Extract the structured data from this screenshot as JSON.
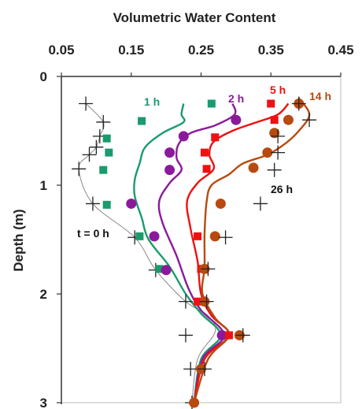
{
  "chart_data": {
    "type": "scatter",
    "title": "",
    "xlabel": "Volumetric Water Content",
    "ylabel": "Depth (m)",
    "xlim": [
      0.05,
      0.45
    ],
    "ylim": [
      0,
      3
    ],
    "y_inverted": true,
    "x_axis_position": "top",
    "x_ticks": [
      "0.05",
      "0.15",
      "0.25",
      "0.35",
      "0.45"
    ],
    "y_ticks": [
      "0",
      "1",
      "2",
      "3"
    ],
    "grid": false,
    "series": [
      {
        "name": "t = 0 h",
        "color": "#888888",
        "marker": "plus",
        "marker_color": "#222222",
        "points": [
          {
            "x": 0.085,
            "y": 0.25
          },
          {
            "x": 0.11,
            "y": 0.42
          },
          {
            "x": 0.105,
            "y": 0.55
          },
          {
            "x": 0.1,
            "y": 0.65
          },
          {
            "x": 0.09,
            "y": 0.72
          },
          {
            "x": 0.075,
            "y": 0.85
          },
          {
            "x": 0.095,
            "y": 1.17
          },
          {
            "x": 0.155,
            "y": 1.48
          },
          {
            "x": 0.185,
            "y": 1.78
          },
          {
            "x": 0.228,
            "y": 2.07
          },
          {
            "x": 0.228,
            "y": 2.38
          },
          {
            "x": 0.235,
            "y": 2.69
          },
          {
            "x": 0.237,
            "y": 3.0
          }
        ],
        "curve": [
          {
            "x": 0.085,
            "y": 0.25
          },
          {
            "x": 0.11,
            "y": 0.42
          },
          {
            "x": 0.105,
            "y": 0.55
          },
          {
            "x": 0.1,
            "y": 0.65
          },
          {
            "x": 0.09,
            "y": 0.72
          },
          {
            "x": 0.075,
            "y": 0.85
          },
          {
            "x": 0.095,
            "y": 1.17
          },
          {
            "x": 0.155,
            "y": 1.48
          },
          {
            "x": 0.185,
            "y": 1.78
          },
          {
            "x": 0.228,
            "y": 2.07
          },
          {
            "x": 0.26,
            "y": 2.2
          },
          {
            "x": 0.27,
            "y": 2.35
          },
          {
            "x": 0.245,
            "y": 2.6
          },
          {
            "x": 0.237,
            "y": 3.0
          }
        ]
      },
      {
        "name": "1 h",
        "color": "#1a9b6c",
        "marker": "square",
        "points": [
          {
            "x": 0.265,
            "y": 0.25
          },
          {
            "x": 0.165,
            "y": 0.41
          },
          {
            "x": 0.115,
            "y": 0.57
          },
          {
            "x": 0.118,
            "y": 0.7
          },
          {
            "x": 0.11,
            "y": 0.86
          },
          {
            "x": 0.115,
            "y": 1.18
          },
          {
            "x": 0.162,
            "y": 1.47
          },
          {
            "x": 0.19,
            "y": 1.77
          }
        ],
        "curve": [
          {
            "x": 0.225,
            "y": 0.25
          },
          {
            "x": 0.222,
            "y": 0.35
          },
          {
            "x": 0.225,
            "y": 0.42
          },
          {
            "x": 0.195,
            "y": 0.52
          },
          {
            "x": 0.17,
            "y": 0.65
          },
          {
            "x": 0.162,
            "y": 0.8
          },
          {
            "x": 0.155,
            "y": 0.95
          },
          {
            "x": 0.155,
            "y": 1.1
          },
          {
            "x": 0.165,
            "y": 1.3
          },
          {
            "x": 0.175,
            "y": 1.5
          },
          {
            "x": 0.205,
            "y": 1.75
          },
          {
            "x": 0.228,
            "y": 2.0
          },
          {
            "x": 0.25,
            "y": 2.18
          },
          {
            "x": 0.278,
            "y": 2.38
          },
          {
            "x": 0.25,
            "y": 2.6
          },
          {
            "x": 0.24,
            "y": 3.0
          }
        ]
      },
      {
        "name": "2 h",
        "color": "#8b1a9b",
        "marker": "circle",
        "points": [
          {
            "x": 0.3,
            "y": 0.4
          },
          {
            "x": 0.225,
            "y": 0.55
          },
          {
            "x": 0.205,
            "y": 0.7
          },
          {
            "x": 0.205,
            "y": 0.86
          },
          {
            "x": 0.15,
            "y": 1.17
          },
          {
            "x": 0.183,
            "y": 1.47
          },
          {
            "x": 0.2,
            "y": 1.78
          },
          {
            "x": 0.28,
            "y": 2.38
          }
        ],
        "curve": [
          {
            "x": 0.295,
            "y": 0.25
          },
          {
            "x": 0.298,
            "y": 0.35
          },
          {
            "x": 0.27,
            "y": 0.45
          },
          {
            "x": 0.235,
            "y": 0.52
          },
          {
            "x": 0.218,
            "y": 0.62
          },
          {
            "x": 0.215,
            "y": 0.75
          },
          {
            "x": 0.222,
            "y": 0.86
          },
          {
            "x": 0.205,
            "y": 0.98
          },
          {
            "x": 0.19,
            "y": 1.15
          },
          {
            "x": 0.195,
            "y": 1.35
          },
          {
            "x": 0.215,
            "y": 1.65
          },
          {
            "x": 0.232,
            "y": 1.95
          },
          {
            "x": 0.25,
            "y": 2.15
          },
          {
            "x": 0.283,
            "y": 2.38
          },
          {
            "x": 0.252,
            "y": 2.6
          },
          {
            "x": 0.24,
            "y": 3.0
          }
        ]
      },
      {
        "name": "5 h",
        "color": "#ee1111",
        "marker": "square",
        "points": [
          {
            "x": 0.35,
            "y": 0.25
          },
          {
            "x": 0.355,
            "y": 0.4
          },
          {
            "x": 0.27,
            "y": 0.56
          },
          {
            "x": 0.255,
            "y": 0.7
          },
          {
            "x": 0.258,
            "y": 0.85
          },
          {
            "x": 0.245,
            "y": 1.47
          },
          {
            "x": 0.25,
            "y": 1.77
          },
          {
            "x": 0.245,
            "y": 2.07
          },
          {
            "x": 0.29,
            "y": 2.38
          }
        ],
        "curve": [
          {
            "x": 0.375,
            "y": 0.25
          },
          {
            "x": 0.36,
            "y": 0.35
          },
          {
            "x": 0.33,
            "y": 0.42
          },
          {
            "x": 0.295,
            "y": 0.5
          },
          {
            "x": 0.268,
            "y": 0.6
          },
          {
            "x": 0.262,
            "y": 0.72
          },
          {
            "x": 0.268,
            "y": 0.85
          },
          {
            "x": 0.245,
            "y": 0.98
          },
          {
            "x": 0.23,
            "y": 1.15
          },
          {
            "x": 0.235,
            "y": 1.4
          },
          {
            "x": 0.245,
            "y": 1.7
          },
          {
            "x": 0.25,
            "y": 2.0
          },
          {
            "x": 0.265,
            "y": 2.2
          },
          {
            "x": 0.29,
            "y": 2.38
          },
          {
            "x": 0.255,
            "y": 2.6
          },
          {
            "x": 0.24,
            "y": 3.0
          }
        ]
      },
      {
        "name": "14 h",
        "color": "#b84a10",
        "marker": "circle",
        "points": [
          {
            "x": 0.39,
            "y": 0.25
          },
          {
            "x": 0.375,
            "y": 0.4
          },
          {
            "x": 0.355,
            "y": 0.52
          },
          {
            "x": 0.345,
            "y": 0.7
          },
          {
            "x": 0.325,
            "y": 0.84
          },
          {
            "x": 0.278,
            "y": 1.17
          },
          {
            "x": 0.27,
            "y": 1.47
          },
          {
            "x": 0.255,
            "y": 1.77
          },
          {
            "x": 0.255,
            "y": 2.07
          },
          {
            "x": 0.305,
            "y": 2.38
          },
          {
            "x": 0.25,
            "y": 2.69
          },
          {
            "x": 0.24,
            "y": 3.0
          }
        ],
        "curve": [
          {
            "x": 0.39,
            "y": 0.2
          },
          {
            "x": 0.405,
            "y": 0.35
          },
          {
            "x": 0.39,
            "y": 0.5
          },
          {
            "x": 0.37,
            "y": 0.62
          },
          {
            "x": 0.345,
            "y": 0.72
          },
          {
            "x": 0.31,
            "y": 0.8
          },
          {
            "x": 0.29,
            "y": 0.9
          },
          {
            "x": 0.265,
            "y": 1.0
          },
          {
            "x": 0.258,
            "y": 1.15
          },
          {
            "x": 0.255,
            "y": 1.45
          },
          {
            "x": 0.255,
            "y": 1.75
          },
          {
            "x": 0.252,
            "y": 2.0
          },
          {
            "x": 0.27,
            "y": 2.22
          },
          {
            "x": 0.29,
            "y": 2.38
          },
          {
            "x": 0.26,
            "y": 2.6
          },
          {
            "x": 0.24,
            "y": 3.0
          }
        ]
      },
      {
        "name": "26 h",
        "color": "#222222",
        "marker": "plus",
        "points": [
          {
            "x": 0.39,
            "y": 0.25
          },
          {
            "x": 0.405,
            "y": 0.4
          },
          {
            "x": 0.36,
            "y": 0.55
          },
          {
            "x": 0.36,
            "y": 0.7
          },
          {
            "x": 0.355,
            "y": 0.86
          },
          {
            "x": 0.335,
            "y": 1.17
          },
          {
            "x": 0.285,
            "y": 1.48
          },
          {
            "x": 0.26,
            "y": 1.77
          },
          {
            "x": 0.258,
            "y": 2.07
          },
          {
            "x": 0.31,
            "y": 2.38
          },
          {
            "x": 0.255,
            "y": 2.69
          }
        ]
      }
    ]
  },
  "labels": {
    "x_title": "Volumetric Water Content",
    "y_title": "Depth (m)",
    "x_ticks": [
      "0.05",
      "0.15",
      "0.25",
      "0.35",
      "0.45"
    ],
    "y_ticks": [
      "0",
      "1",
      "2",
      "3"
    ],
    "series_labels": [
      "t = 0 h",
      "1 h",
      "2 h",
      "5 h",
      "14 h",
      "26 h"
    ]
  }
}
